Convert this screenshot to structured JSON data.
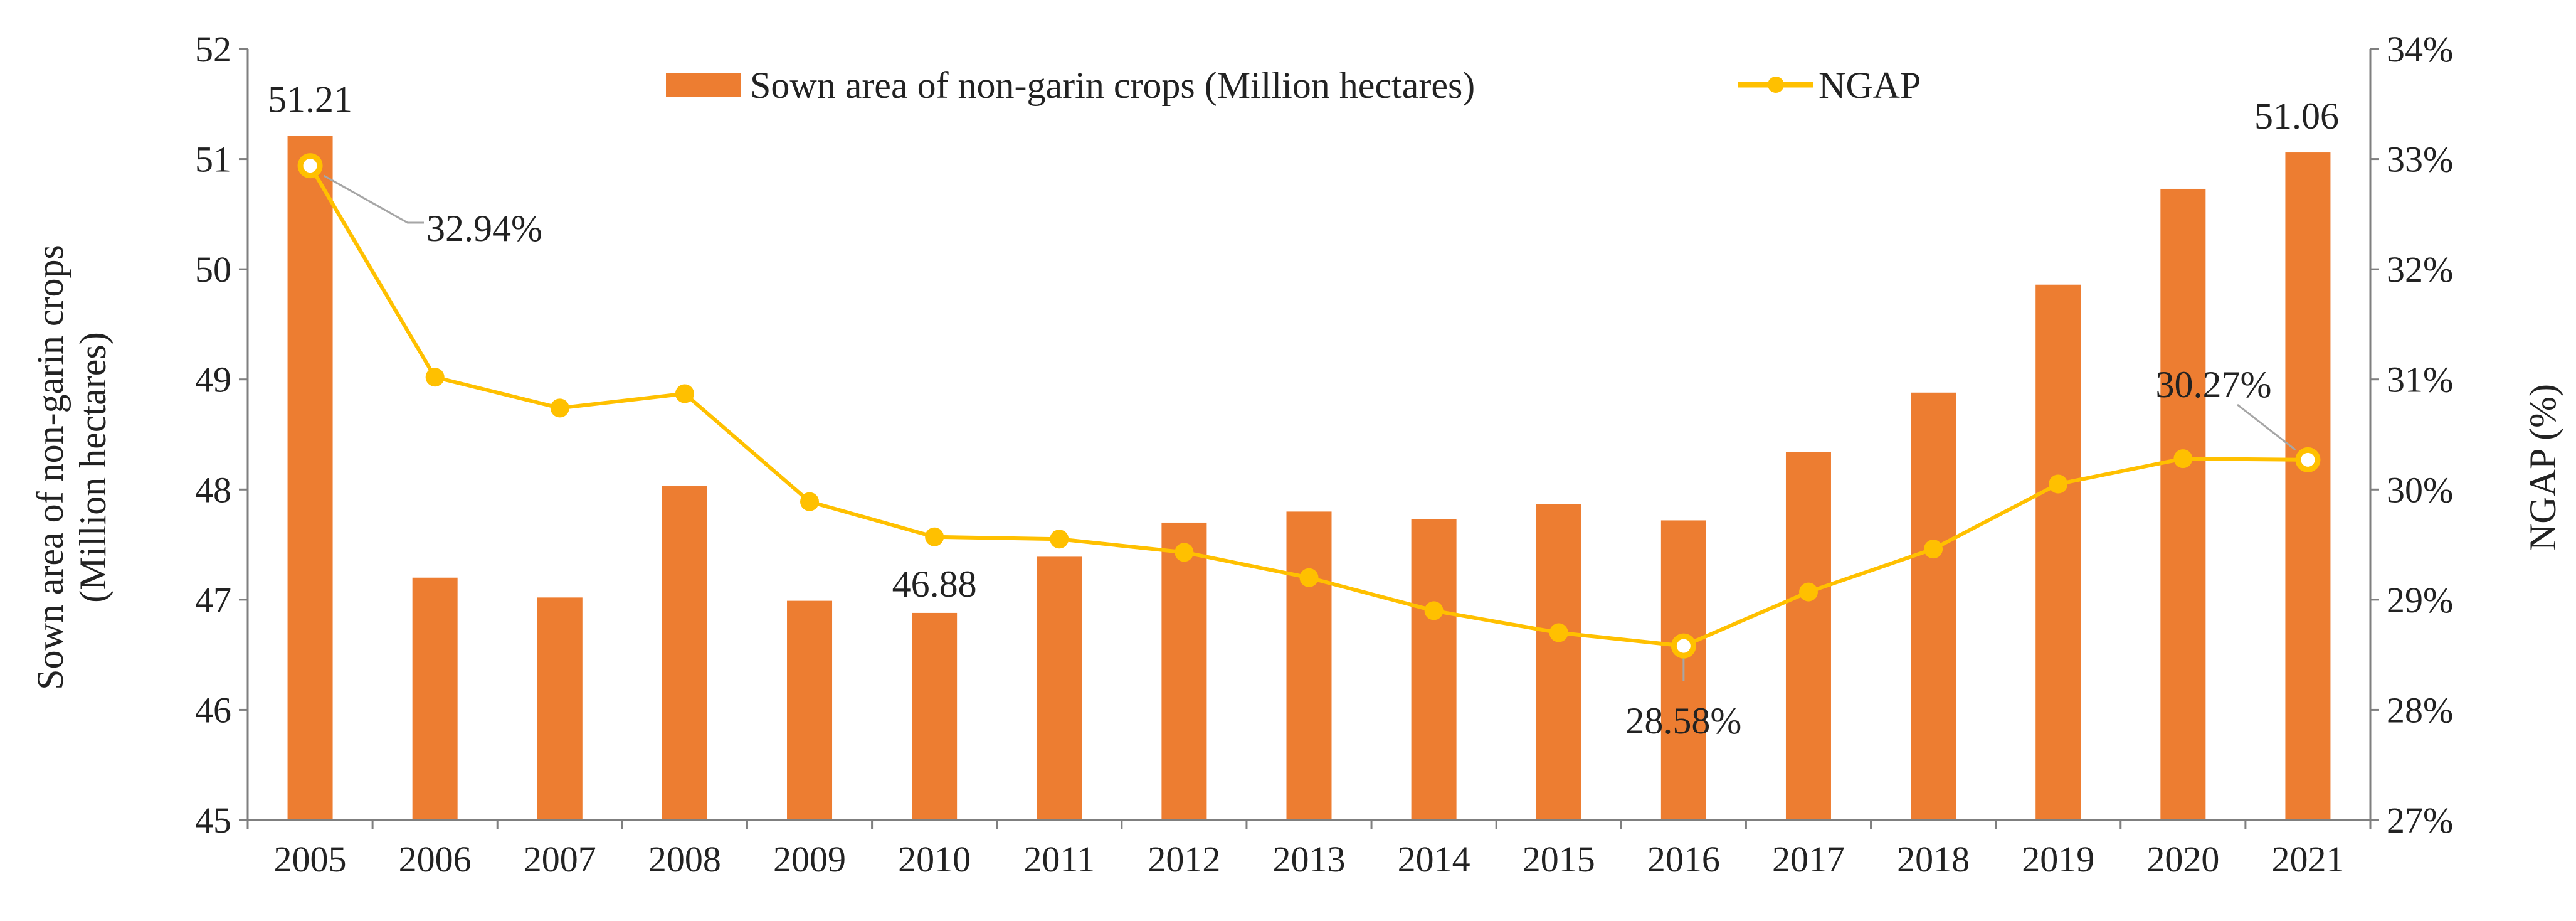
{
  "chart_data": {
    "type": "bar+line",
    "categories": [
      "2005",
      "2006",
      "2007",
      "2008",
      "2009",
      "2010",
      "2011",
      "2012",
      "2013",
      "2014",
      "2015",
      "2016",
      "2017",
      "2018",
      "2019",
      "2020",
      "2021"
    ],
    "series": [
      {
        "name": "Sown area of non-garin crops (Million hectares)",
        "type": "bar",
        "axis": "left",
        "color": "#ED7D31",
        "values": [
          51.21,
          47.2,
          47.02,
          48.03,
          46.99,
          46.88,
          47.39,
          47.7,
          47.8,
          47.73,
          47.87,
          47.72,
          48.34,
          48.88,
          49.86,
          50.73,
          51.06
        ]
      },
      {
        "name": "NGAP",
        "type": "line",
        "axis": "right",
        "color": "#FFC000",
        "values": [
          32.94,
          31.02,
          30.74,
          30.87,
          29.89,
          29.57,
          29.55,
          29.43,
          29.2,
          28.9,
          28.7,
          28.58,
          29.07,
          29.46,
          30.05,
          30.28,
          30.27
        ]
      }
    ],
    "left_axis": {
      "title_line1": "Sown area of non-garin crops",
      "title_line2": "(Million hectares)",
      "ylim": [
        45,
        52
      ],
      "ticks": [
        "45",
        "46",
        "47",
        "48",
        "49",
        "50",
        "51",
        "52"
      ]
    },
    "right_axis": {
      "title": "NGAP (%)",
      "ylim": [
        27,
        34
      ],
      "ticks": [
        "27%",
        "28%",
        "29%",
        "30%",
        "31%",
        "32%",
        "33%",
        "34%"
      ]
    },
    "legend": {
      "position": "top-center",
      "bar_label": "Sown area of non-garin crops (Million hectares)",
      "line_label": "NGAP"
    },
    "annotations": {
      "bar_labels": [
        {
          "index": 0,
          "text": "51.21"
        },
        {
          "index": 5,
          "text": "46.88"
        },
        {
          "index": 16,
          "text": "51.06"
        }
      ],
      "line_labels": [
        {
          "index": 0,
          "text": "32.94%"
        },
        {
          "index": 11,
          "text": "28.58%"
        },
        {
          "index": 16,
          "text": "30.27%"
        }
      ]
    },
    "grid": false
  }
}
